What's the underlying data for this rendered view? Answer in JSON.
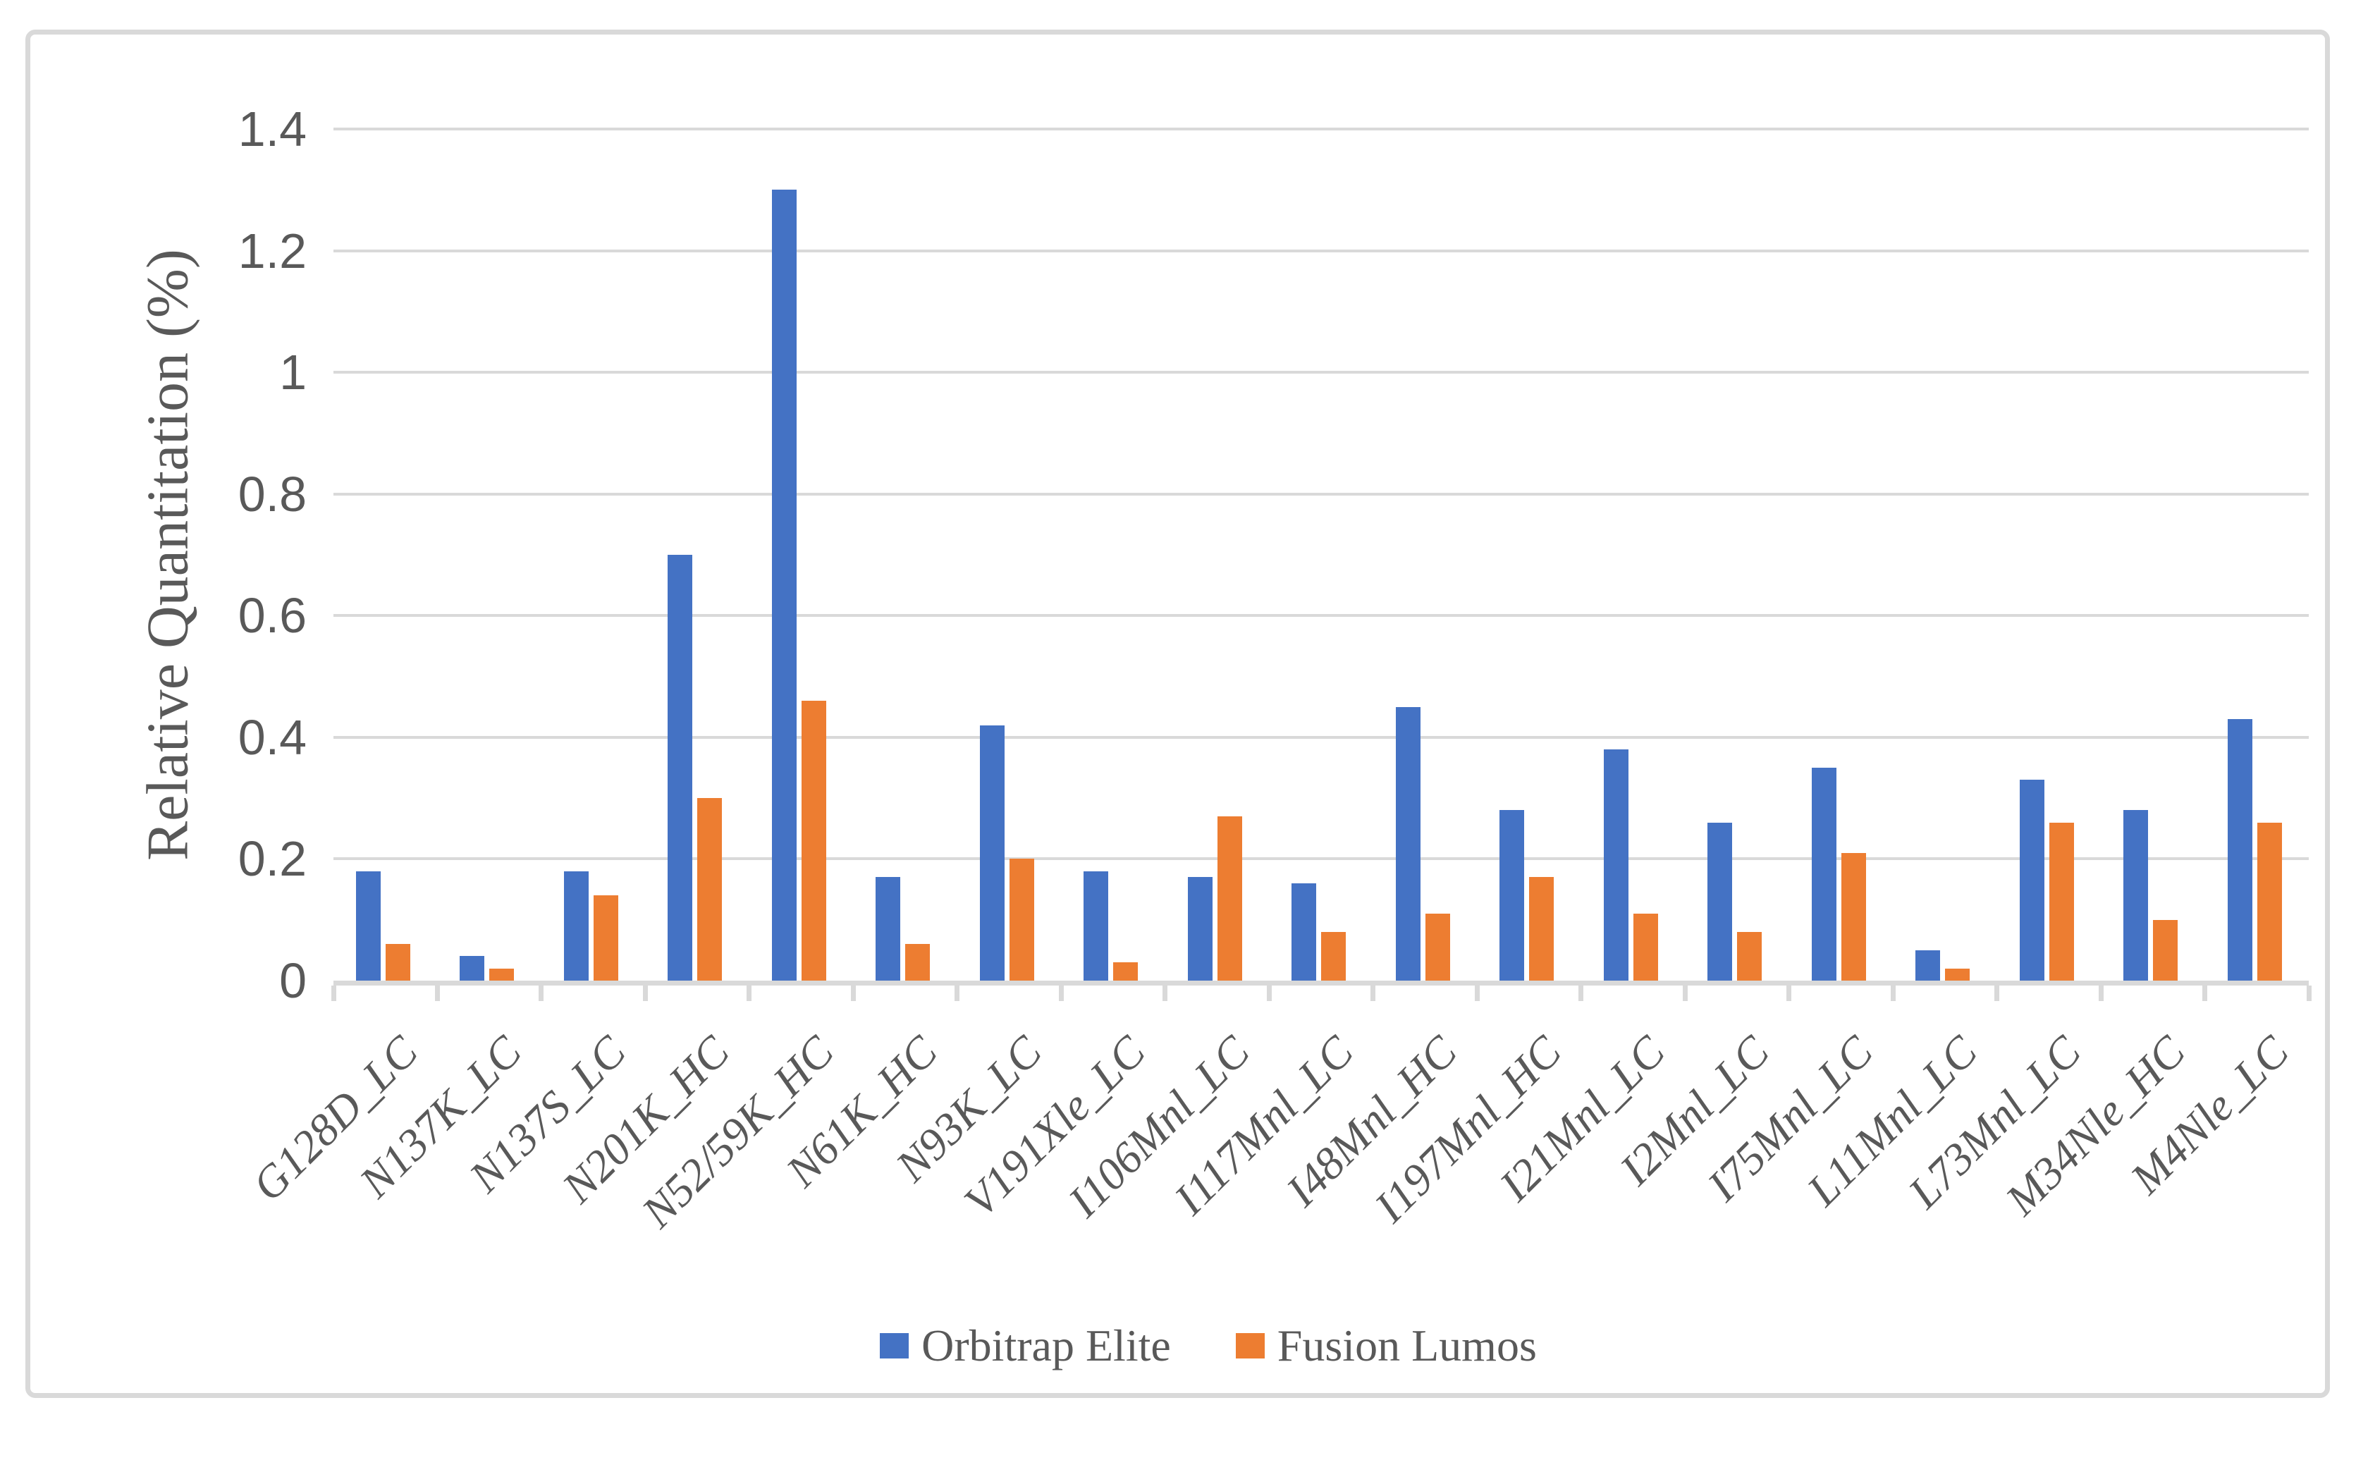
{
  "chart_data": {
    "type": "bar",
    "title": "",
    "xlabel": "",
    "ylabel": "Relative Quantitation (%)",
    "ylim": [
      0,
      1.4
    ],
    "ytick_step": 0.2,
    "yticks": [
      "0",
      "0.2",
      "0.4",
      "0.6",
      "0.8",
      "1",
      "1.2",
      "1.4"
    ],
    "grid": true,
    "legend_position": "bottom-center",
    "categories": [
      "G128D_LC",
      "N137K_LC",
      "N137S_LC",
      "N201K_HC",
      "N52/59K_HC",
      "N61K_HC",
      "N93K_LC",
      "V191Xle_LC",
      "I106Mnl_LC",
      "I117Mnl_LC",
      "I48Mnl_HC",
      "I197Mnl_HC",
      "I21Mnl_LC",
      "I2Mnl_LC",
      "I75Mnl_LC",
      "L11Mnl_LC",
      "L73Mnl_LC",
      "M34Nle_HC",
      "M4Nle_LC"
    ],
    "series": [
      {
        "name": "Orbitrap Elite",
        "color": "#4472C4",
        "values": [
          0.18,
          0.04,
          0.18,
          0.7,
          1.3,
          0.17,
          0.42,
          0.18,
          0.17,
          0.16,
          0.45,
          0.28,
          0.38,
          0.26,
          0.35,
          0.05,
          0.33,
          0.28,
          0.43
        ]
      },
      {
        "name": "Fusion Lumos",
        "color": "#ED7D31",
        "values": [
          0.06,
          0.02,
          0.14,
          0.3,
          0.46,
          0.06,
          0.2,
          0.03,
          0.27,
          0.08,
          0.11,
          0.17,
          0.11,
          0.08,
          0.21,
          0.02,
          0.26,
          0.1,
          0.26
        ]
      }
    ]
  },
  "style": {
    "background": "#FFFFFF",
    "frame_color": "#D9D9D9",
    "gridline_color": "#D9D9D9",
    "axis_color": "#D9D9D9",
    "text_color": "#595959"
  }
}
